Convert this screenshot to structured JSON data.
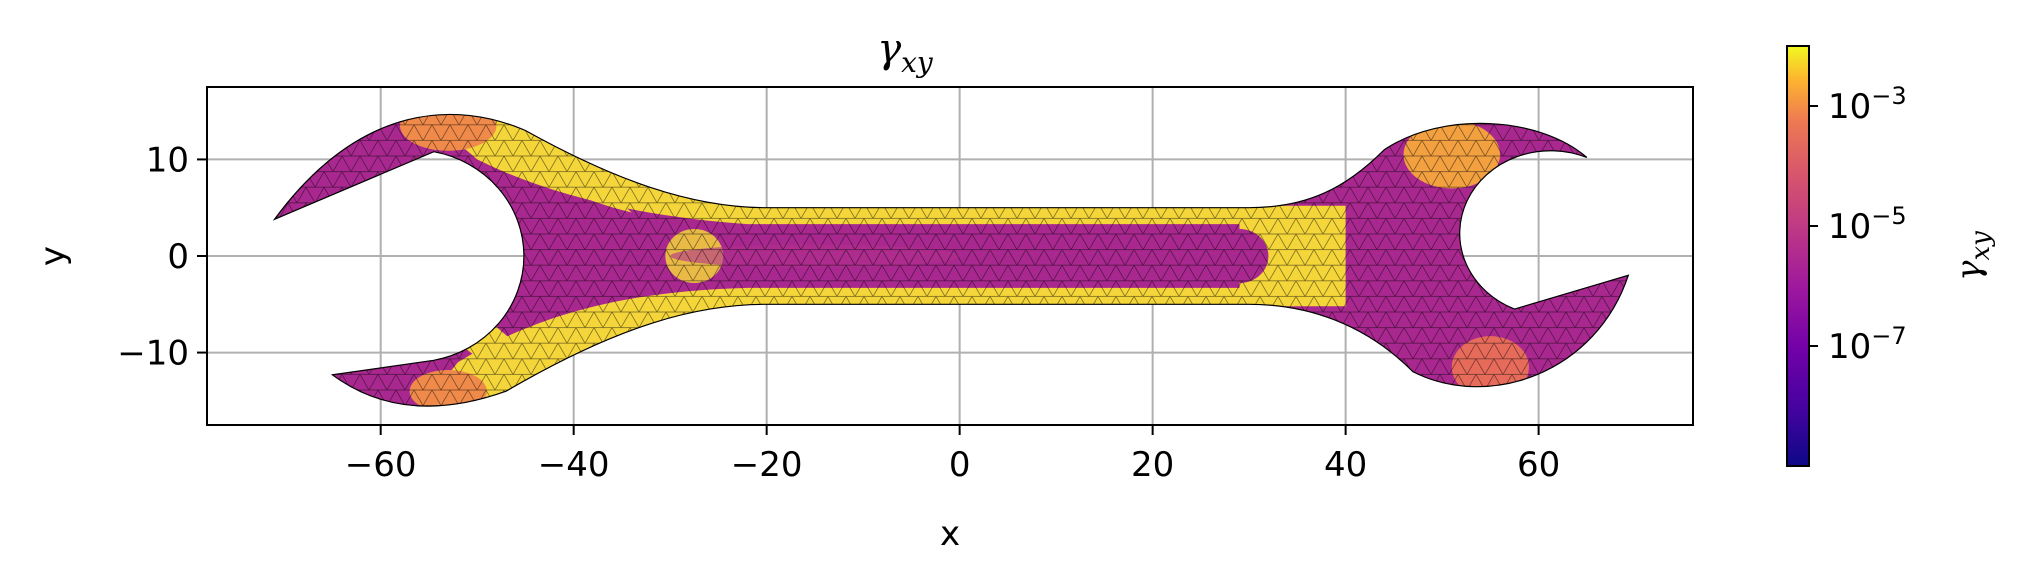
{
  "chart_data": {
    "type": "heatmap",
    "title_main": "γ",
    "title_sub": "xy",
    "xlabel": "x",
    "ylabel": "y",
    "xlim": [
      -78,
      76
    ],
    "ylim": [
      -17.5,
      17.5
    ],
    "xticks": [
      -60,
      -40,
      -20,
      0,
      20,
      40,
      60
    ],
    "xtick_labels": [
      "−60",
      "−40",
      "−20",
      "0",
      "20",
      "40",
      "60"
    ],
    "yticks": [
      -10,
      0,
      10
    ],
    "ytick_labels": [
      "−10",
      "0",
      "10"
    ],
    "grid": true,
    "colormap": "plasma",
    "colorbar": {
      "label_main": "γ",
      "label_sub": "xy",
      "scale": "log",
      "range": [
        1e-09,
        0.01
      ],
      "ticks": [
        {
          "value": 0.001,
          "base": "10",
          "exp": "−3"
        },
        {
          "value": 1e-05,
          "base": "10",
          "exp": "−5"
        },
        {
          "value": 1e-07,
          "base": "10",
          "exp": "−7"
        }
      ]
    },
    "regions": [
      {
        "name": "handle-outer-band-top",
        "level": "high"
      },
      {
        "name": "handle-outer-band-bottom",
        "level": "high"
      },
      {
        "name": "handle-core",
        "level": "low"
      },
      {
        "name": "left-jaw",
        "level": "low"
      },
      {
        "name": "right-jaw",
        "level": "low"
      },
      {
        "name": "right-neck",
        "level": "high"
      }
    ]
  },
  "colors": {
    "low": "#a8288f",
    "mid": "#e66b5a",
    "high": "#f4d53a",
    "grid": "#b0b0b0",
    "mesh": "#000000"
  }
}
